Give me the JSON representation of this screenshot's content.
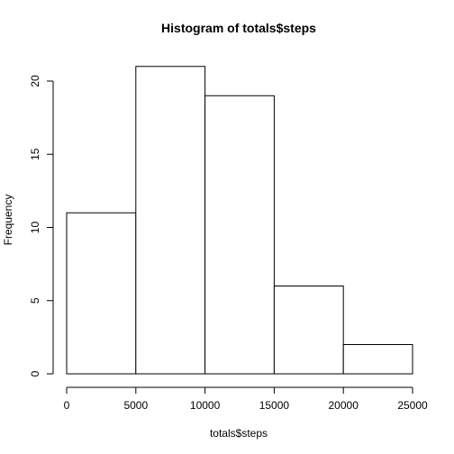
{
  "chart_data": {
    "type": "bar",
    "title": "Histogram of totals$steps",
    "xlabel": "totals$steps",
    "ylabel": "Frequency",
    "bins": [
      {
        "from": 0,
        "to": 5000,
        "count": 11
      },
      {
        "from": 5000,
        "to": 10000,
        "count": 21
      },
      {
        "from": 10000,
        "to": 15000,
        "count": 19
      },
      {
        "from": 15000,
        "to": 20000,
        "count": 6
      },
      {
        "from": 20000,
        "to": 25000,
        "count": 2
      }
    ],
    "xlim": [
      0,
      25000
    ],
    "ylim": [
      0,
      22
    ],
    "x_ticks": [
      0,
      5000,
      10000,
      15000,
      20000,
      25000
    ],
    "y_ticks": [
      0,
      5,
      10,
      15,
      20
    ],
    "grid": false,
    "legend": "none",
    "colors": {
      "bar_fill": "#ffffff",
      "bar_stroke": "#000000",
      "axis": "#000000"
    }
  }
}
